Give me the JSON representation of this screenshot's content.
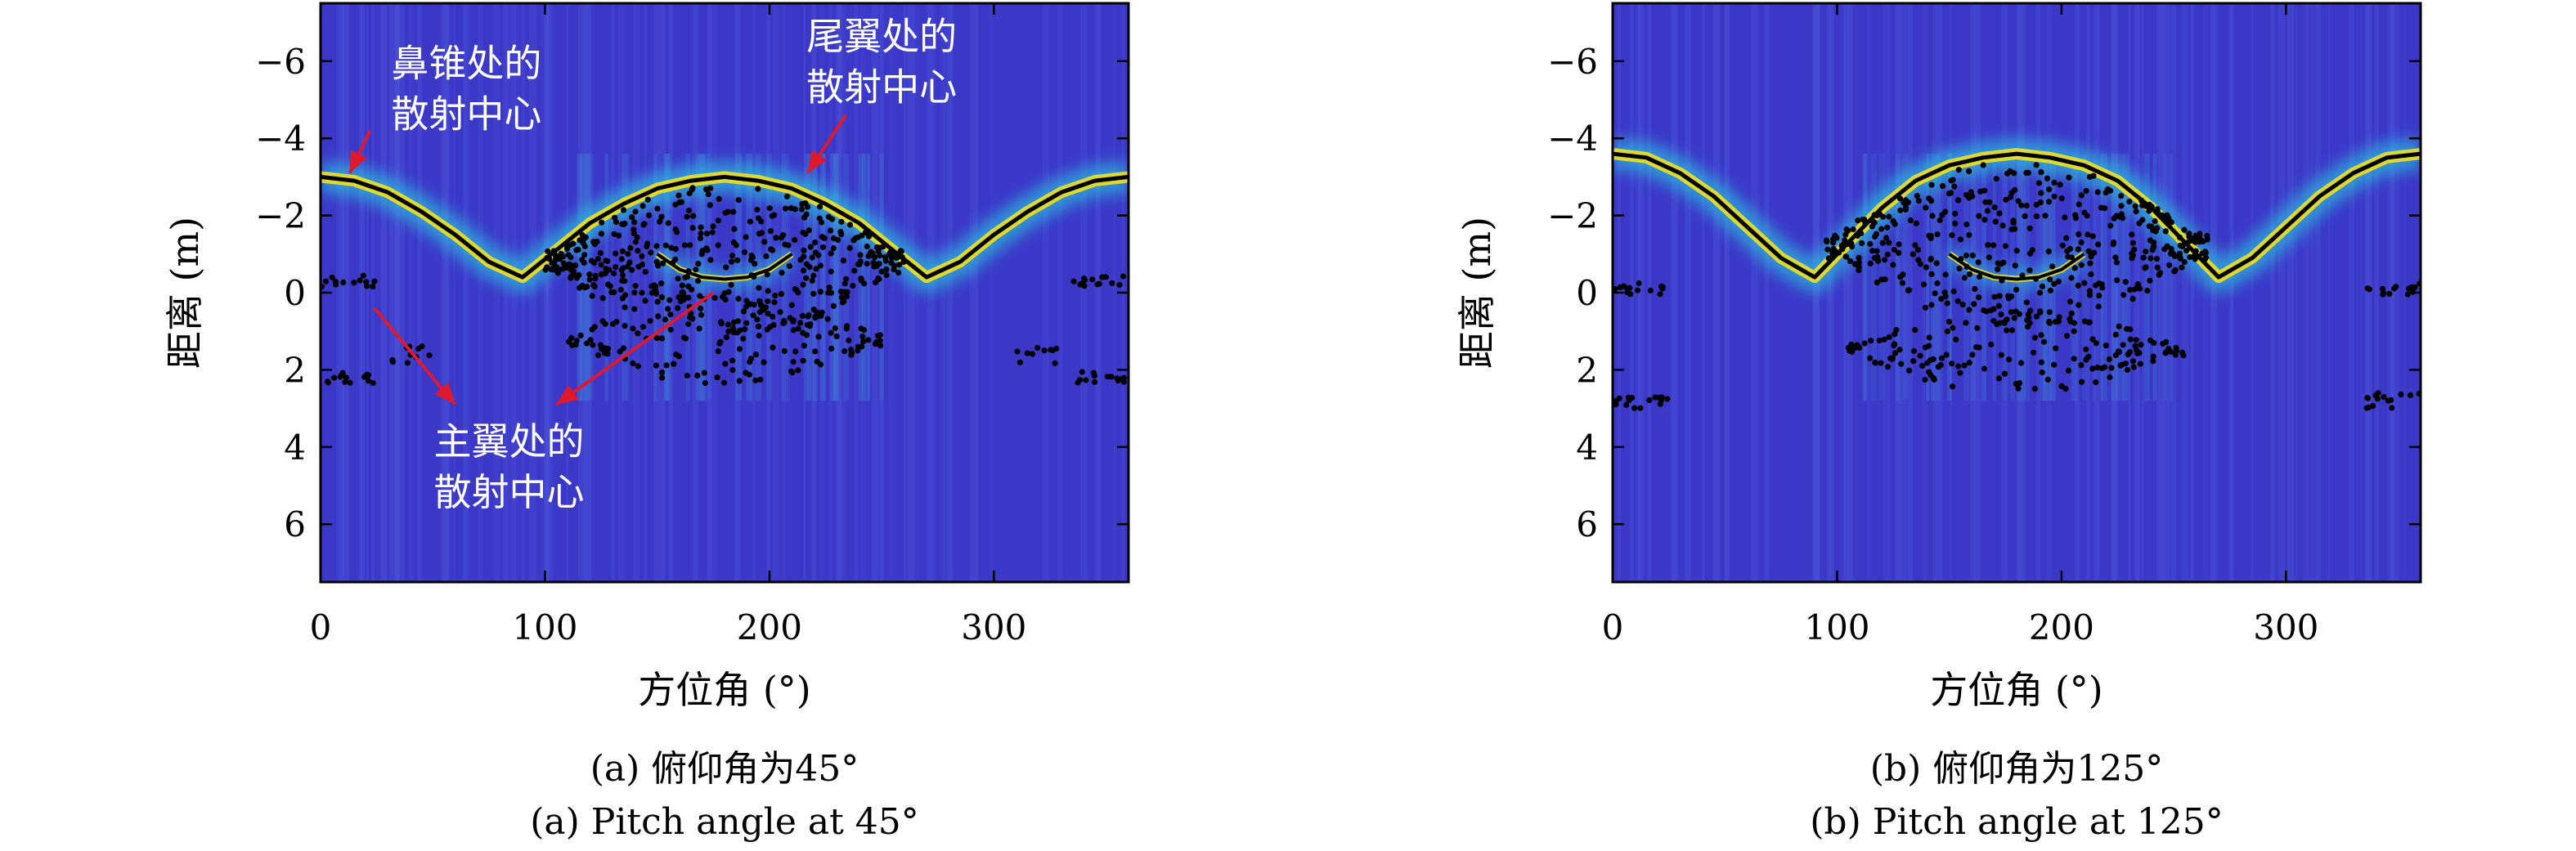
{
  "colors": {
    "background": "#3b38c8",
    "stripe_light": "#4a52d6",
    "glow": "#29c7df",
    "hot": "#f0e020",
    "curve": "#000000",
    "points": "#000000",
    "arrow": "#e0182d",
    "annotation_text": "#ffffff"
  },
  "chart_data": [
    {
      "id": "a",
      "type": "heatmap",
      "title": "",
      "xlabel": "方位角 (°)",
      "ylabel": "距离 (m)",
      "xlim": [
        0,
        360
      ],
      "ylim": [
        7.5,
        -7.5
      ],
      "y_axis_inverted": true,
      "xticks": [
        0,
        100,
        200,
        300
      ],
      "xtick_labels": [
        "0",
        "100",
        "200",
        "300"
      ],
      "yticks": [
        -6,
        -4,
        -2,
        0,
        2,
        4,
        6
      ],
      "ytick_labels": [
        "−6",
        "−4",
        "−2",
        "0",
        "2",
        "4",
        "6"
      ],
      "grid": false,
      "legend": "none",
      "captions": [
        "(a) 俯仰角为45°",
        "(a) Pitch angle at 45°"
      ],
      "nose_curve": {
        "description_free": true,
        "x": [
          0,
          15,
          30,
          45,
          60,
          75,
          90,
          105,
          120,
          135,
          150,
          165,
          180,
          195,
          210,
          225,
          240,
          255,
          270,
          285,
          300,
          315,
          330,
          345,
          360
        ],
        "y": [
          -3.0,
          -2.9,
          -2.6,
          -2.1,
          -1.5,
          -0.8,
          -0.4,
          -1.1,
          -1.8,
          -2.3,
          -2.7,
          -2.9,
          -3.0,
          -2.9,
          -2.7,
          -2.3,
          -1.8,
          -1.1,
          -0.4,
          -0.8,
          -1.5,
          -2.1,
          -2.6,
          -2.9,
          -3.0
        ]
      },
      "wing_curve": {
        "x": [
          150,
          160,
          170,
          180,
          190,
          200,
          210
        ],
        "y": [
          -1.0,
          -0.6,
          -0.4,
          -0.35,
          -0.4,
          -0.6,
          -1.0
        ]
      },
      "scatter_clusters": [
        {
          "x_range": [
            0,
            25
          ],
          "y_center": -0.3,
          "y_spread": 0.15,
          "count": 14
        },
        {
          "x_range": [
            0,
            25
          ],
          "y_center": 2.2,
          "y_spread": 0.15,
          "count": 14
        },
        {
          "x_range": [
            30,
            50
          ],
          "y_center": 1.6,
          "y_spread": 0.25,
          "count": 10
        },
        {
          "x_range": [
            335,
            360
          ],
          "y_center": -0.3,
          "y_spread": 0.15,
          "count": 14
        },
        {
          "x_range": [
            335,
            360
          ],
          "y_center": 2.2,
          "y_spread": 0.15,
          "count": 14
        },
        {
          "x_range": [
            310,
            330
          ],
          "y_center": 1.6,
          "y_spread": 0.25,
          "count": 10
        },
        {
          "x_range": [
            100,
            260
          ],
          "y_center": -0.8,
          "y_spread": 2.0,
          "count": 420
        },
        {
          "x_range": [
            110,
            250
          ],
          "y_center": 1.2,
          "y_spread": 1.2,
          "count": 160
        }
      ],
      "annotations": [
        {
          "lines": [
            "鼻锥处的",
            "散射中心"
          ],
          "text_x": 65,
          "text_y": -5.6,
          "arrows": [
            [
              22,
              -4.2,
              13,
              -3.1
            ]
          ]
        },
        {
          "lines": [
            "尾翼处的",
            "散射中心"
          ],
          "text_x": 250,
          "text_y": -6.3,
          "arrows": [
            [
              234,
              -4.6,
              217,
              -3.1
            ]
          ]
        },
        {
          "lines": [
            "主翼处的",
            "散射中心"
          ],
          "text_x": 84,
          "text_y": 4.2,
          "arrows": [
            [
              24,
              0.4,
              60,
              2.9
            ],
            [
              175,
              0.0,
              105,
              2.9
            ]
          ]
        }
      ]
    },
    {
      "id": "b",
      "type": "heatmap",
      "title": "",
      "xlabel": "方位角 (°)",
      "ylabel": "距离 (m)",
      "xlim": [
        0,
        360
      ],
      "ylim": [
        7.5,
        -7.5
      ],
      "y_axis_inverted": true,
      "xticks": [
        0,
        100,
        200,
        300
      ],
      "xtick_labels": [
        "0",
        "100",
        "200",
        "300"
      ],
      "yticks": [
        -6,
        -4,
        -2,
        0,
        2,
        4,
        6
      ],
      "ytick_labels": [
        "−6",
        "−4",
        "−2",
        "0",
        "2",
        "4",
        "6"
      ],
      "grid": false,
      "legend": "none",
      "captions": [
        "(b) 俯仰角为125°",
        "(b) Pitch angle at 125°"
      ],
      "nose_curve": {
        "x": [
          0,
          15,
          30,
          45,
          60,
          75,
          90,
          105,
          120,
          135,
          150,
          165,
          180,
          195,
          210,
          225,
          240,
          255,
          270,
          285,
          300,
          315,
          330,
          345,
          360
        ],
        "y": [
          -3.6,
          -3.5,
          -3.1,
          -2.5,
          -1.7,
          -0.9,
          -0.4,
          -1.3,
          -2.2,
          -2.9,
          -3.3,
          -3.5,
          -3.6,
          -3.5,
          -3.3,
          -2.9,
          -2.2,
          -1.3,
          -0.4,
          -0.9,
          -1.7,
          -2.5,
          -3.1,
          -3.5,
          -3.6
        ]
      },
      "wing_curve": {
        "x": [
          150,
          160,
          170,
          180,
          190,
          200,
          210
        ],
        "y": [
          -1.0,
          -0.6,
          -0.4,
          -0.35,
          -0.4,
          -0.6,
          -1.0
        ]
      },
      "scatter_clusters": [
        {
          "x_range": [
            0,
            25
          ],
          "y_center": -0.1,
          "y_spread": 0.15,
          "count": 14
        },
        {
          "x_range": [
            0,
            25
          ],
          "y_center": 2.8,
          "y_spread": 0.2,
          "count": 16
        },
        {
          "x_range": [
            335,
            360
          ],
          "y_center": -0.1,
          "y_spread": 0.15,
          "count": 14
        },
        {
          "x_range": [
            335,
            360
          ],
          "y_center": 2.8,
          "y_spread": 0.2,
          "count": 16
        },
        {
          "x_range": [
            95,
            265
          ],
          "y_center": -1.2,
          "y_spread": 2.2,
          "count": 420
        },
        {
          "x_range": [
            105,
            255
          ],
          "y_center": 1.5,
          "y_spread": 1.1,
          "count": 170
        }
      ],
      "annotations": []
    }
  ]
}
